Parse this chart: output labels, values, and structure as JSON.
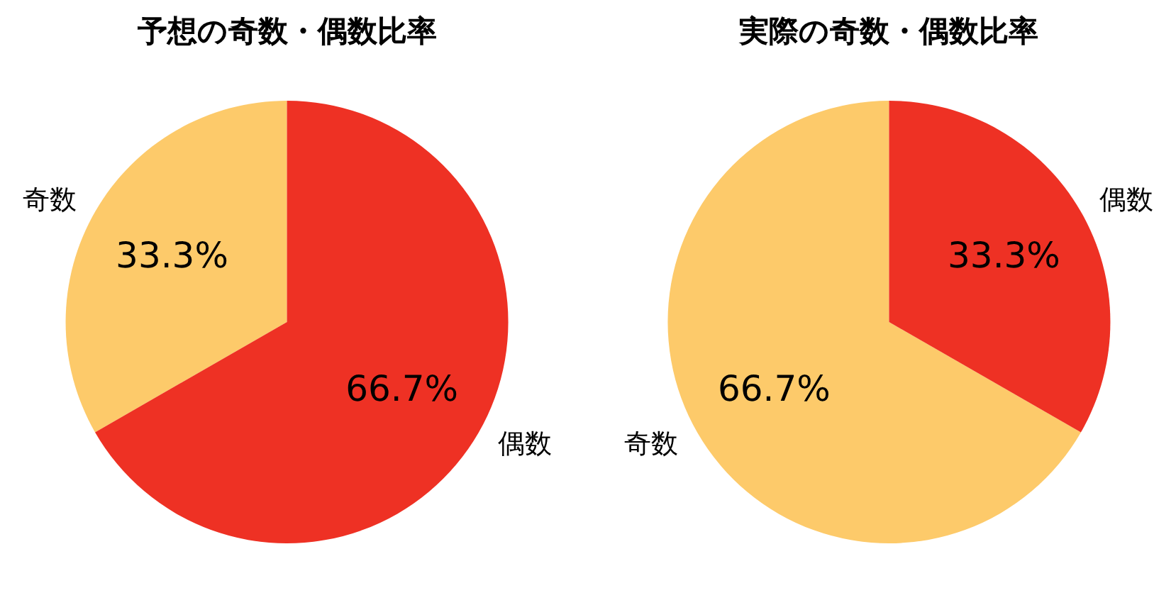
{
  "chart_data": [
    {
      "type": "pie",
      "title": "予想の奇数・偶数比率",
      "categories": [
        "奇数",
        "偶数"
      ],
      "values": [
        33.3,
        66.7
      ],
      "colors": [
        "#fdca6a",
        "#ee3124"
      ],
      "value_labels": [
        "33.3%",
        "66.7%"
      ]
    },
    {
      "type": "pie",
      "title": "実際の奇数・偶数比率",
      "categories": [
        "奇数",
        "偶数"
      ],
      "values": [
        66.7,
        33.3
      ],
      "colors": [
        "#fdca6a",
        "#ee3124"
      ],
      "value_labels": [
        "66.7%",
        "33.3%"
      ]
    }
  ]
}
